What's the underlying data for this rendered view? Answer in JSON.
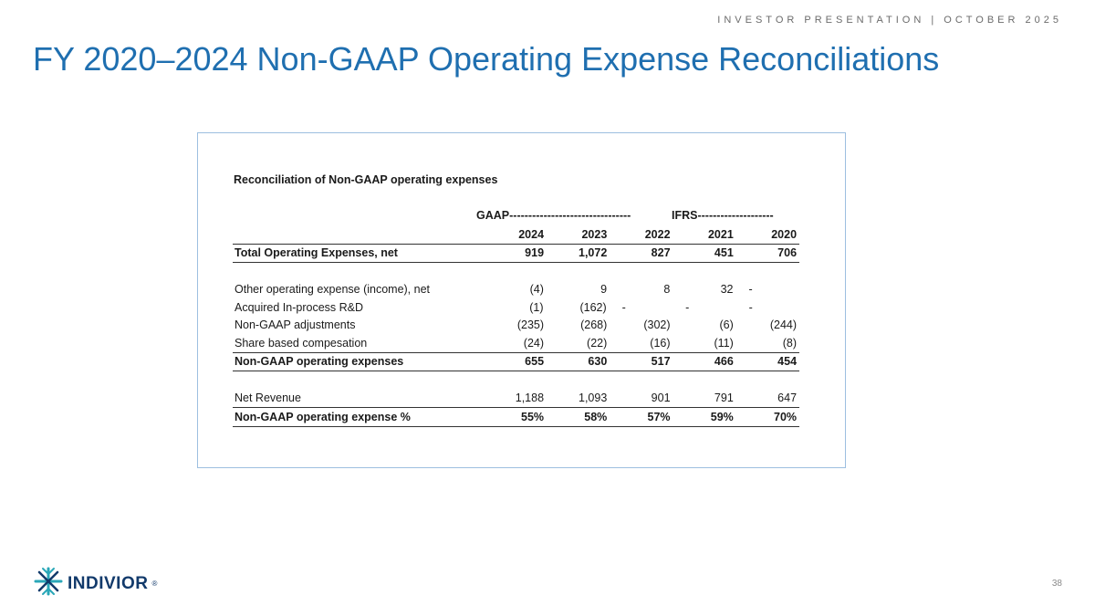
{
  "header": {
    "tag": "INVESTOR PRESENTATION | OCTOBER 2025"
  },
  "title": "FY 2020–2024 Non-GAAP Operating Expense Reconciliations",
  "table": {
    "caption": "Reconciliation of Non-GAAP operating expenses",
    "gaap_label": "GAAP--------------------------------",
    "ifrs_label": "IFRS--------------------",
    "years": [
      "2024",
      "2023",
      "2022",
      "2021",
      "2020"
    ],
    "rows": [
      {
        "label": "Total Operating Expenses, net",
        "values": [
          "919",
          "1,072",
          "827",
          "451",
          "706"
        ]
      },
      {
        "label": "Other operating expense (income), net",
        "values": [
          "(4)",
          "9",
          "8",
          "32",
          "-"
        ]
      },
      {
        "label": "Acquired In-process R&D",
        "values": [
          "(1)",
          "(162)",
          "-",
          "-",
          "-"
        ]
      },
      {
        "label": "Non-GAAP adjustments",
        "values": [
          "(235)",
          "(268)",
          "(302)",
          "(6)",
          "(244)"
        ]
      },
      {
        "label": "Share based compesation",
        "values": [
          "(24)",
          "(22)",
          "(16)",
          "(11)",
          "(8)"
        ]
      },
      {
        "label": "Non-GAAP operating expenses",
        "values": [
          "655",
          "630",
          "517",
          "466",
          "454"
        ]
      },
      {
        "label": "Net Revenue",
        "values": [
          "1,188",
          "1,093",
          "901",
          "791",
          "647"
        ]
      },
      {
        "label": "Non-GAAP operating expense %",
        "values": [
          "55%",
          "58%",
          "57%",
          "59%",
          "70%"
        ]
      }
    ]
  },
  "footer": {
    "logo_text": "INDIVIOR",
    "logo_mark": "®",
    "page_number": "38"
  },
  "colors": {
    "title": "#1f6fb0",
    "frame": "#9dbfe0",
    "logo": "#123a6b",
    "logo_accent": "#2aa7b8"
  }
}
